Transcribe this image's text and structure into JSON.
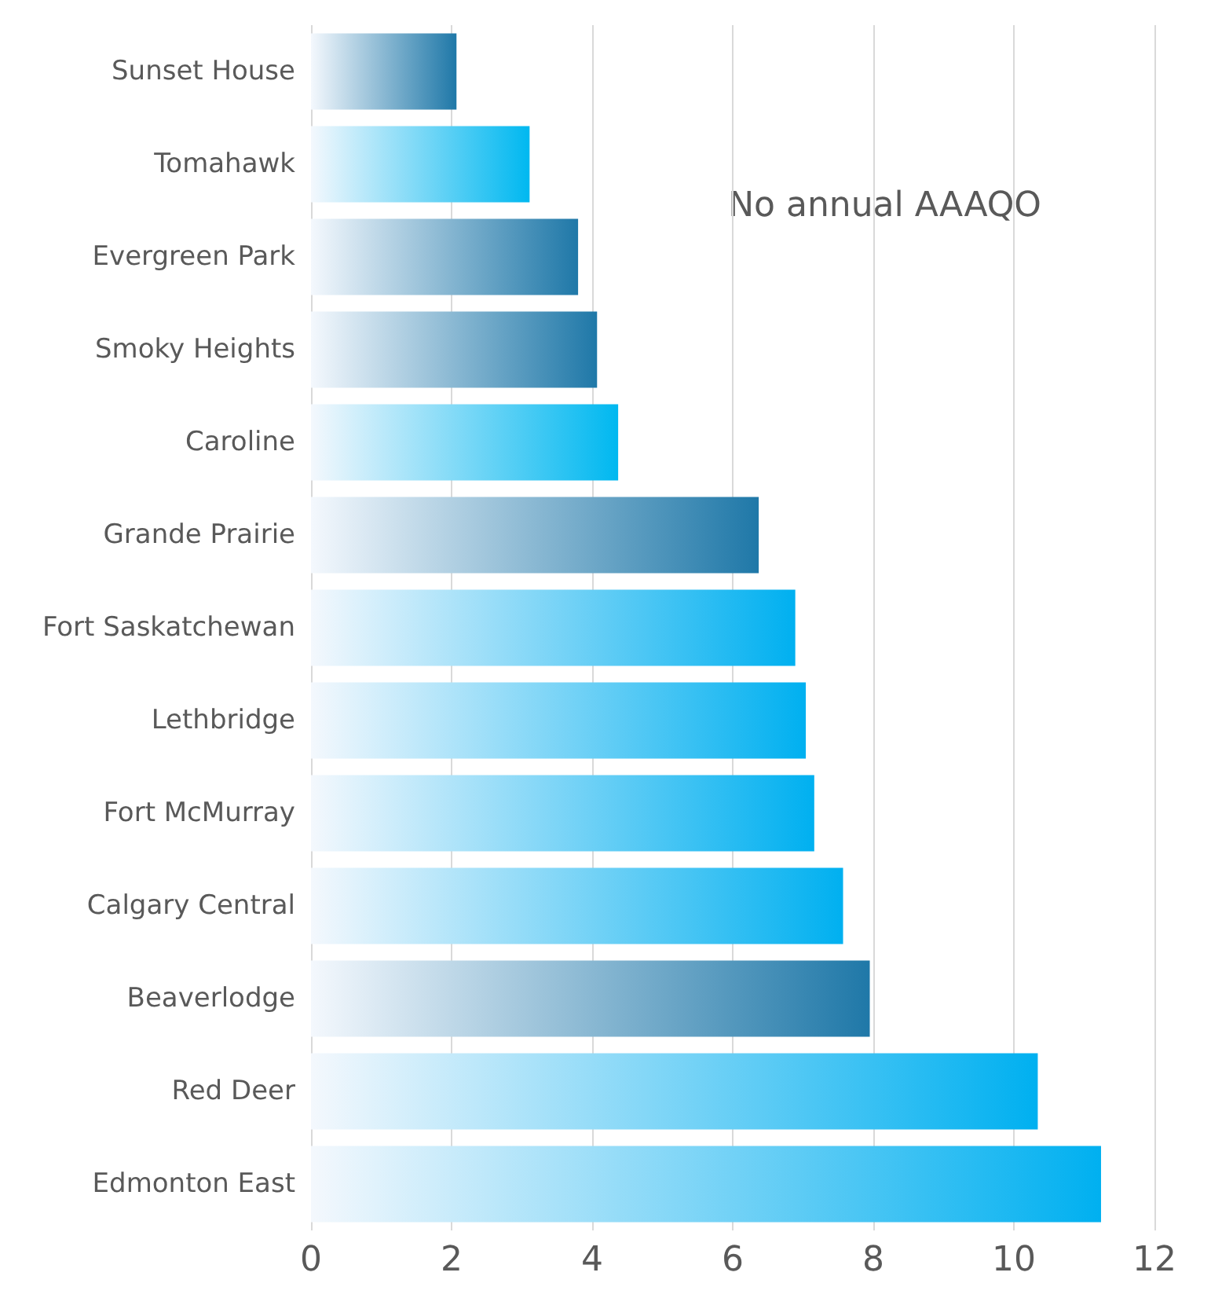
{
  "chart_data": {
    "type": "bar",
    "orientation": "horizontal",
    "categories": [
      "Sunset House",
      "Tomahawk",
      "Evergreen Park",
      "Smoky Heights",
      "Caroline",
      "Grande Prairie",
      "Fort Saskatchewan",
      "Lethbridge",
      "Fort McMurray",
      "Calgary Central",
      "Beaverlodge",
      "Red Deer",
      "Edmonton East"
    ],
    "values": [
      2.07,
      3.11,
      3.8,
      4.07,
      4.37,
      6.37,
      6.89,
      7.04,
      7.16,
      7.57,
      7.95,
      10.34,
      11.24
    ],
    "colors": [
      "#1f78a8",
      "#00b8f0",
      "#1f78a8",
      "#1f78a8",
      "#00b8f0",
      "#1f78a8",
      "#00b0f0",
      "#00b0f0",
      "#00b0f0",
      "#00b0f0",
      "#1f78a8",
      "#00b0f0",
      "#00b0f0"
    ],
    "xlim": [
      0,
      12
    ],
    "xticks": [
      0,
      2,
      4,
      6,
      8,
      10,
      12
    ],
    "grid": "x",
    "annotations": [
      "No annual AAAQO"
    ]
  }
}
